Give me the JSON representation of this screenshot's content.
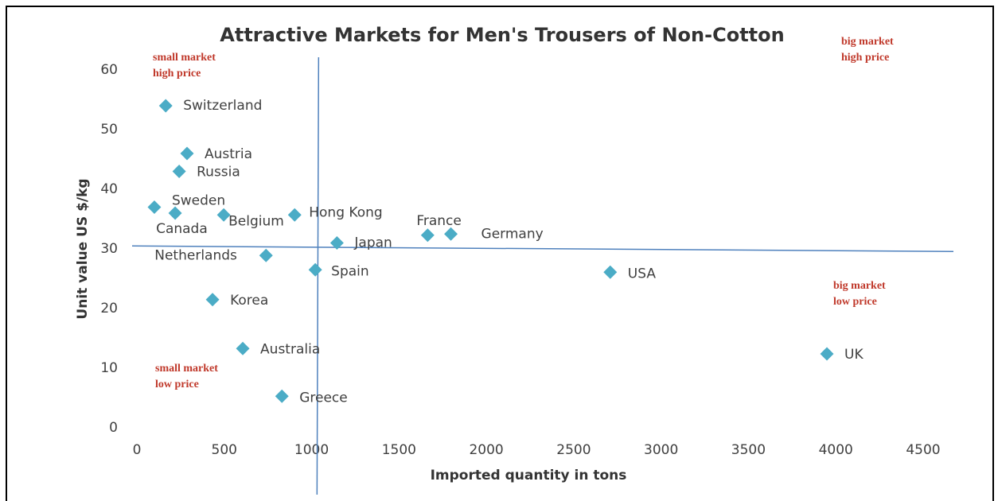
{
  "chart_data": {
    "type": "scatter",
    "title": "Attractive Markets for Men's Trousers of Non-Cotton",
    "x_label": "Imported quantity in tons",
    "y_label": "Unit value US $/kg",
    "color": "#4bacc6",
    "series": [
      {
        "name": null,
        "color": "#4bacc6",
        "labels": [
          "Switzerland",
          "Austria",
          "Russia",
          "Sweden",
          "Canada",
          "Belgium",
          "Hong Kong",
          "Japan",
          "France",
          "Germany",
          "Netherlands",
          "Spain",
          "USA",
          "Korea",
          "Australia",
          "Greece",
          "UK"
        ],
        "x": [
          165,
          287,
          242,
          100,
          219,
          497,
          903,
          1145,
          1664,
          1797,
          739,
          1021,
          2709,
          433,
          606,
          830,
          3949
        ],
        "values": [
          54,
          46,
          43,
          37,
          36,
          35.7,
          35.7,
          31,
          32.3,
          32.5,
          28.9,
          26.5,
          26.1,
          21.5,
          13.3,
          5.3,
          12.4
        ]
      }
    ],
    "reference_lines": {
      "x": 1040,
      "y": 30.5
    },
    "annotations": [
      {
        "text": [
          "small market",
          "high price"
        ]
      },
      {
        "text": [
          "big market",
          "high price"
        ]
      },
      {
        "text": [
          "big market",
          "low price"
        ]
      },
      {
        "text": [
          "small market",
          "low price"
        ]
      }
    ],
    "xlim": [
      0,
      4500
    ],
    "xticks": [
      0,
      500,
      1000,
      1500,
      2000,
      2500,
      3000,
      3500,
      4000,
      4500
    ],
    "ylim": [
      0,
      60
    ],
    "yticks": [
      0,
      10,
      20,
      30,
      40,
      50,
      60
    ]
  }
}
